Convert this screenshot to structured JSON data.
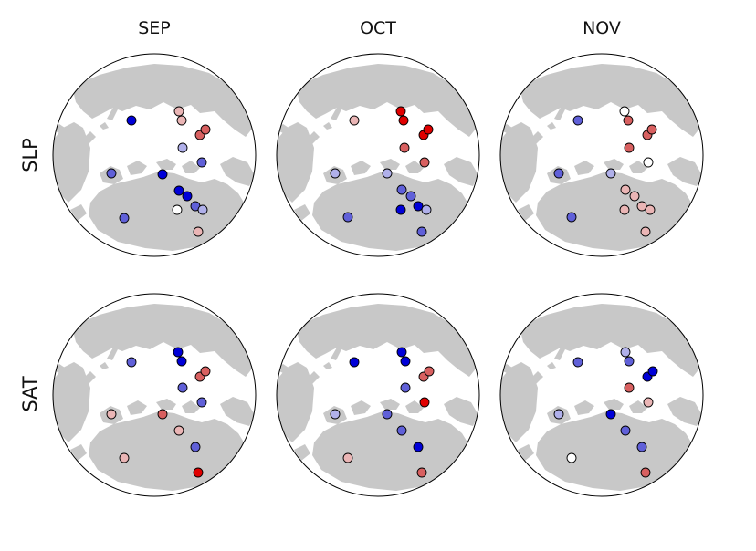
{
  "figure": {
    "columns": [
      "SEP",
      "OCT",
      "NOV"
    ],
    "rows": [
      "SLP",
      "SAT"
    ]
  },
  "colors": {
    "background": "#ffffff",
    "land": "#c8c8c8",
    "ocean": "#ffffff",
    "outline": "#000000",
    "scale": {
      "strong_positive": "#e00000",
      "medium_positive": "#d86060",
      "weak_positive": "#eab5b5",
      "neutral": "#ffffff",
      "weak_negative": "#b0b0ea",
      "medium_negative": "#6060d8",
      "strong_negative": "#0000d8"
    }
  },
  "chart_data": [
    {
      "type": "scatter",
      "panel": "SLP-SEP",
      "row": "SLP",
      "column": "SEP",
      "map": "Arctic polar stereographic projection",
      "encoding": "colour = anomaly; red positive, blue negative",
      "stations": [
        {
          "id": "s1",
          "value": -0.9
        },
        {
          "id": "s2",
          "value": 0.35
        },
        {
          "id": "s3",
          "value": 0.45
        },
        {
          "id": "s4",
          "value": 0.5
        },
        {
          "id": "s5",
          "value": 0.5
        },
        {
          "id": "s6",
          "value": -0.35
        },
        {
          "id": "s7",
          "value": -0.55
        },
        {
          "id": "s8",
          "value": -0.55
        },
        {
          "id": "s9",
          "value": -0.9
        },
        {
          "id": "s10",
          "value": -0.85
        },
        {
          "id": "s11",
          "value": -0.85
        },
        {
          "id": "s12",
          "value": -0.6
        },
        {
          "id": "s13",
          "value": 0.05
        },
        {
          "id": "s14",
          "value": -0.3
        },
        {
          "id": "s15",
          "value": -0.55
        },
        {
          "id": "s16",
          "value": 0.2
        }
      ]
    },
    {
      "type": "scatter",
      "panel": "SLP-OCT",
      "row": "SLP",
      "column": "OCT",
      "map": "Arctic polar stereographic projection",
      "encoding": "colour = anomaly; red positive, blue negative",
      "stations": [
        {
          "id": "s1",
          "value": 0.35
        },
        {
          "id": "s2",
          "value": 0.95
        },
        {
          "id": "s3",
          "value": 0.95
        },
        {
          "id": "s4",
          "value": 0.9
        },
        {
          "id": "s5",
          "value": 0.9
        },
        {
          "id": "s6",
          "value": 0.7
        },
        {
          "id": "s7",
          "value": 0.7
        },
        {
          "id": "s8",
          "value": -0.3
        },
        {
          "id": "s9",
          "value": -0.3
        },
        {
          "id": "s10",
          "value": -0.6
        },
        {
          "id": "s11",
          "value": -0.75
        },
        {
          "id": "s12",
          "value": -0.9
        },
        {
          "id": "s13",
          "value": -0.9
        },
        {
          "id": "s14",
          "value": -0.25
        },
        {
          "id": "s15",
          "value": -0.65
        },
        {
          "id": "s16",
          "value": -0.6
        }
      ]
    },
    {
      "type": "scatter",
      "panel": "SLP-NOV",
      "row": "SLP",
      "column": "NOV",
      "map": "Arctic polar stereographic projection",
      "encoding": "colour = anomaly; red positive, blue negative",
      "stations": [
        {
          "id": "s1",
          "value": -0.65
        },
        {
          "id": "s2",
          "value": 0.0
        },
        {
          "id": "s3",
          "value": 0.7
        },
        {
          "id": "s4",
          "value": 0.7
        },
        {
          "id": "s5",
          "value": 0.75
        },
        {
          "id": "s6",
          "value": 0.75
        },
        {
          "id": "s7",
          "value": 0.05
        },
        {
          "id": "s8",
          "value": -0.5
        },
        {
          "id": "s9",
          "value": -0.3
        },
        {
          "id": "s10",
          "value": 0.4
        },
        {
          "id": "s11",
          "value": 0.35
        },
        {
          "id": "s12",
          "value": 0.3
        },
        {
          "id": "s13",
          "value": 0.3
        },
        {
          "id": "s14",
          "value": 0.35
        },
        {
          "id": "s15",
          "value": -0.55
        },
        {
          "id": "s16",
          "value": 0.4
        }
      ]
    },
    {
      "type": "scatter",
      "panel": "SAT-SEP",
      "row": "SAT",
      "column": "SEP",
      "map": "Arctic polar stereographic projection",
      "encoding": "colour = anomaly; red positive, blue negative",
      "stations": [
        {
          "id": "s1",
          "value": -0.65
        },
        {
          "id": "s2",
          "value": -0.95
        },
        {
          "id": "s3",
          "value": -0.95
        },
        {
          "id": "s4",
          "value": 0.6
        },
        {
          "id": "s5",
          "value": 0.6
        },
        {
          "id": "s6",
          "value": -0.75
        },
        {
          "id": "s7",
          "value": -0.75
        },
        {
          "id": "s8",
          "value": 0.4
        },
        {
          "id": "s9",
          "value": 0.7
        },
        {
          "id": "s10",
          "value": 0.35
        },
        {
          "id": "s11",
          "value": -0.5
        },
        {
          "id": "s12",
          "value": 0.85
        },
        {
          "id": "s13",
          "value": 0.2
        }
      ]
    },
    {
      "type": "scatter",
      "panel": "SAT-OCT",
      "row": "SAT",
      "column": "OCT",
      "map": "Arctic polar stereographic projection",
      "encoding": "colour = anomaly; red positive, blue negative",
      "stations": [
        {
          "id": "s1",
          "value": -0.95
        },
        {
          "id": "s2",
          "value": -0.95
        },
        {
          "id": "s3",
          "value": -0.95
        },
        {
          "id": "s4",
          "value": 0.6
        },
        {
          "id": "s5",
          "value": 0.7
        },
        {
          "id": "s6",
          "value": -0.7
        },
        {
          "id": "s7",
          "value": 0.95
        },
        {
          "id": "s8",
          "value": -0.35
        },
        {
          "id": "s9",
          "value": -0.7
        },
        {
          "id": "s10",
          "value": -0.75
        },
        {
          "id": "s11",
          "value": -0.95
        },
        {
          "id": "s12",
          "value": 0.75
        },
        {
          "id": "s13",
          "value": 0.25
        }
      ]
    },
    {
      "type": "scatter",
      "panel": "SAT-NOV",
      "row": "SAT",
      "column": "NOV",
      "map": "Arctic polar stereographic projection",
      "encoding": "colour = anomaly; red positive, blue negative",
      "stations": [
        {
          "id": "s1",
          "value": -0.65
        },
        {
          "id": "s2",
          "value": -0.4
        },
        {
          "id": "s3",
          "value": -0.6
        },
        {
          "id": "s4",
          "value": -0.95
        },
        {
          "id": "s5",
          "value": -0.95
        },
        {
          "id": "s6",
          "value": 0.5
        },
        {
          "id": "s7",
          "value": 0.4
        },
        {
          "id": "s8",
          "value": -0.35
        },
        {
          "id": "s9",
          "value": -0.95
        },
        {
          "id": "s10",
          "value": -0.6
        },
        {
          "id": "s11",
          "value": -0.65
        },
        {
          "id": "s12",
          "value": 0.6
        },
        {
          "id": "s13",
          "value": 0.0
        }
      ]
    }
  ]
}
